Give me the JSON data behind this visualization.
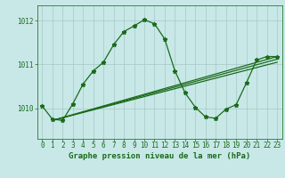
{
  "title": "Graphe pression niveau de la mer (hPa)",
  "background_color": "#c8e8e8",
  "grid_color": "#a8c8c8",
  "line_color": "#1a6b1a",
  "spine_color": "#2a7a2a",
  "xlim": [
    -0.5,
    23.5
  ],
  "ylim": [
    1009.3,
    1012.35
  ],
  "yticks": [
    1010,
    1011,
    1012
  ],
  "xticks": [
    0,
    1,
    2,
    3,
    4,
    5,
    6,
    7,
    8,
    9,
    10,
    11,
    12,
    13,
    14,
    15,
    16,
    17,
    18,
    19,
    20,
    21,
    22,
    23
  ],
  "series_main": {
    "x": [
      0,
      1,
      2,
      3,
      4,
      5,
      6,
      7,
      8,
      9,
      10,
      11,
      12,
      13,
      14,
      15,
      16,
      17,
      18,
      19,
      20,
      21,
      22,
      23
    ],
    "y": [
      1010.05,
      1009.75,
      1009.72,
      1010.1,
      1010.55,
      1010.85,
      1011.05,
      1011.45,
      1011.75,
      1011.88,
      1012.02,
      1011.93,
      1011.58,
      1010.85,
      1010.35,
      1010.02,
      1009.8,
      1009.77,
      1009.98,
      1010.08,
      1010.58,
      1011.1,
      1011.18,
      1011.18
    ]
  },
  "trend_lines": [
    {
      "x": [
        1,
        23
      ],
      "y": [
        1009.72,
        1011.18
      ]
    },
    {
      "x": [
        1,
        23
      ],
      "y": [
        1009.72,
        1011.12
      ]
    },
    {
      "x": [
        1,
        23
      ],
      "y": [
        1009.72,
        1011.05
      ]
    }
  ],
  "marker": "*",
  "markersize": 3.5,
  "linewidth": 0.9,
  "tick_fontsize": 5.5,
  "ylabel_fontsize": 5.5,
  "xlabel_fontsize": 6.5
}
